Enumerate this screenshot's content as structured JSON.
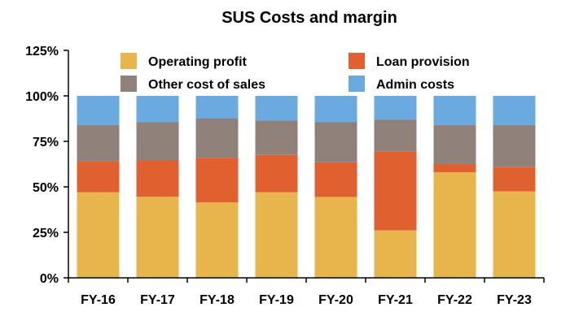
{
  "chart_data": {
    "type": "bar",
    "stacked": true,
    "title": "SUS Costs and margin",
    "categories": [
      "FY-16",
      "FY-17",
      "FY-18",
      "FY-19",
      "FY-20",
      "FY-21",
      "FY-22",
      "FY-23"
    ],
    "series": [
      {
        "name": "Operating profit",
        "color": "#E8B54D",
        "values": [
          47,
          44.5,
          41.5,
          47,
          44.5,
          26,
          58,
          47.5
        ]
      },
      {
        "name": "Loan provision",
        "color": "#E06030",
        "values": [
          17,
          20,
          24.5,
          20.5,
          19,
          43.5,
          4.5,
          13.5
        ]
      },
      {
        "name": "Other cost of sales",
        "color": "#8F8179",
        "values": [
          20,
          21,
          21.5,
          19,
          22,
          17.5,
          21.5,
          23
        ]
      },
      {
        "name": "Admin costs",
        "color": "#6AAAE0",
        "values": [
          16,
          14.5,
          12.5,
          13.5,
          14.5,
          13,
          16,
          16
        ]
      }
    ],
    "yticks": [
      "0%",
      "25%",
      "50%",
      "75%",
      "100%",
      "125%"
    ],
    "ylim": [
      0,
      125
    ],
    "grid": false,
    "legend": "top, inside plot, two columns"
  }
}
